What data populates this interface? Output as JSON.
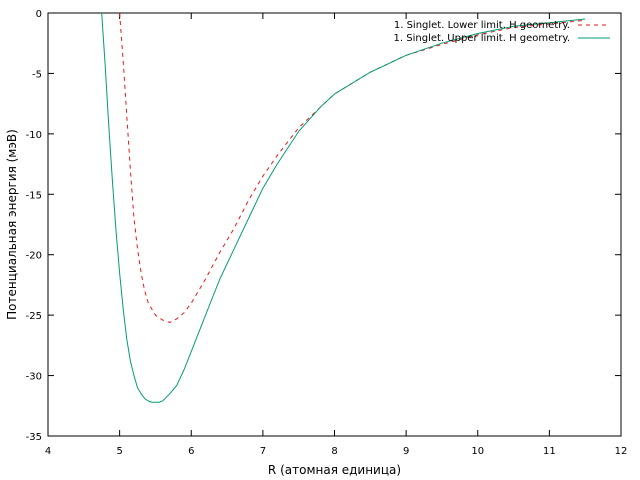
{
  "chart_data": {
    "type": "line",
    "title": "",
    "xlabel": "R (атомная единица)",
    "ylabel": "Потенциальная энергия (мэВ)",
    "xlim": [
      4,
      12
    ],
    "ylim": [
      -35,
      0
    ],
    "x_ticks": [
      4,
      5,
      6,
      7,
      8,
      9,
      10,
      11,
      12
    ],
    "x_tick_labels": [
      "4",
      "5",
      "6",
      "7",
      "8",
      "9",
      "10",
      "11",
      "12"
    ],
    "y_ticks": [
      0,
      -5,
      -10,
      -15,
      -20,
      -25,
      -30,
      -35
    ],
    "y_tick_labels": [
      "0",
      "-5",
      "-10",
      "-15",
      "-20",
      "-25",
      "-30",
      "-35"
    ],
    "grid": false,
    "legend_position": "top-right",
    "series": [
      {
        "name": "1. Singlet. Lower limit. H geometry.",
        "color": "#e41a1c",
        "dash": "dashed",
        "x": [
          5.0,
          5.05,
          5.1,
          5.15,
          5.2,
          5.25,
          5.3,
          5.35,
          5.4,
          5.5,
          5.6,
          5.7,
          5.8,
          5.9,
          6.0,
          6.2,
          6.4,
          6.6,
          6.8,
          7.0,
          7.2,
          7.5,
          7.8,
          8.0,
          8.5,
          9.0,
          9.5,
          10.0,
          10.5,
          11.0,
          11.5
        ],
        "y": [
          0.0,
          -4.0,
          -8.5,
          -13.0,
          -17.0,
          -19.5,
          -21.5,
          -23.0,
          -24.0,
          -25.0,
          -25.4,
          -25.6,
          -25.3,
          -24.8,
          -24.0,
          -22.0,
          -19.8,
          -17.8,
          -15.5,
          -13.5,
          -11.8,
          -9.5,
          -7.8,
          -6.7,
          -4.9,
          -3.5,
          -2.6,
          -1.8,
          -1.2,
          -0.9,
          -0.6
        ]
      },
      {
        "name": "1. Singlet. Upper limit. H geometry.",
        "color": "#009e73",
        "dash": "solid",
        "x": [
          4.75,
          4.8,
          4.85,
          4.9,
          4.95,
          5.0,
          5.05,
          5.1,
          5.15,
          5.2,
          5.25,
          5.3,
          5.35,
          5.4,
          5.45,
          5.5,
          5.55,
          5.6,
          5.65,
          5.7,
          5.8,
          5.9,
          6.0,
          6.1,
          6.2,
          6.3,
          6.4,
          6.6,
          6.8,
          7.0,
          7.2,
          7.5,
          7.8,
          8.0,
          8.5,
          9.0,
          9.5,
          10.0,
          10.5,
          11.0,
          11.5
        ],
        "y": [
          0.0,
          -4.5,
          -9.5,
          -14.0,
          -18.0,
          -21.5,
          -24.5,
          -27.0,
          -28.8,
          -30.0,
          -31.0,
          -31.5,
          -31.9,
          -32.1,
          -32.2,
          -32.2,
          -32.2,
          -32.1,
          -31.8,
          -31.5,
          -30.8,
          -29.5,
          -28.0,
          -26.5,
          -25.0,
          -23.5,
          -22.0,
          -19.5,
          -17.0,
          -14.5,
          -12.5,
          -9.8,
          -7.8,
          -6.7,
          -4.9,
          -3.5,
          -2.5,
          -1.7,
          -1.1,
          -0.8,
          -0.5
        ]
      }
    ]
  }
}
